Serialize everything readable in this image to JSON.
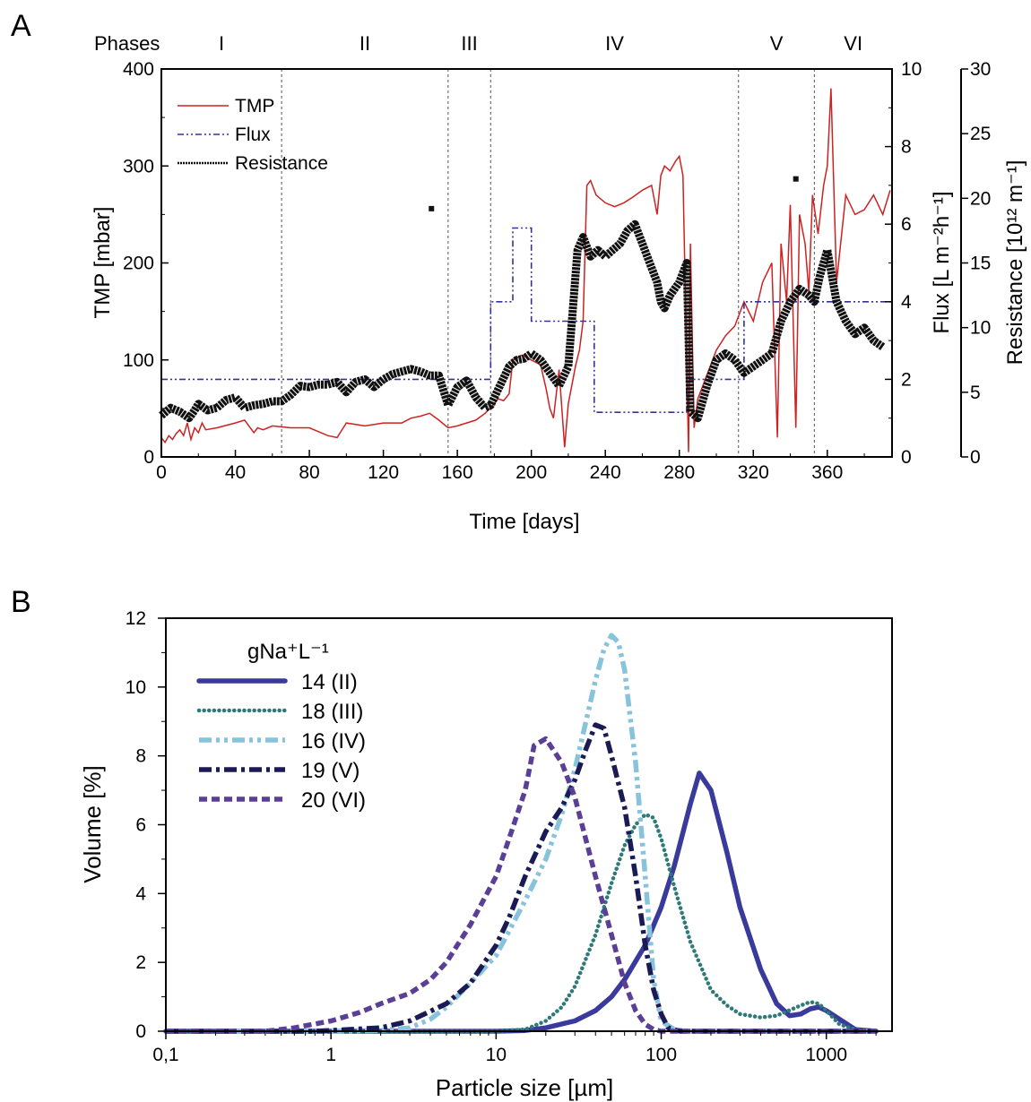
{
  "panels": {
    "a": "A",
    "b": "B"
  },
  "chart_data": [
    {
      "type": "line",
      "xlabel": "Time [days]",
      "ylabel": "TMP [mbar]",
      "y2label": "Flux [L m⁻²h⁻¹]",
      "y3label": "Resistance [10¹² m⁻¹]",
      "xlim": [
        0,
        395
      ],
      "ylim": [
        0,
        400
      ],
      "y2lim": [
        0,
        10
      ],
      "y3lim": [
        0,
        30
      ],
      "xticks": [
        "0",
        "40",
        "80",
        "120",
        "160",
        "200",
        "240",
        "280",
        "320",
        "360"
      ],
      "yticks": [
        "0",
        "100",
        "200",
        "300",
        "400"
      ],
      "y2ticks": [
        "0",
        "2",
        "4",
        "6",
        "8",
        "10"
      ],
      "y3ticks": [
        "0",
        "5",
        "10",
        "15",
        "20",
        "25",
        "30"
      ],
      "phases_label": "Phases",
      "phases": [
        {
          "label": "I",
          "start": 0,
          "end": 65
        },
        {
          "label": "II",
          "start": 65,
          "end": 155
        },
        {
          "label": "III",
          "start": 155,
          "end": 178
        },
        {
          "label": "IV",
          "start": 178,
          "end": 312
        },
        {
          "label": "V",
          "start": 312,
          "end": 353
        },
        {
          "label": "VI",
          "start": 353,
          "end": 395
        }
      ],
      "phase_boundaries": [
        65,
        155,
        178,
        312,
        353
      ],
      "legend": {
        "position": "top-left",
        "entries": [
          "TMP",
          "Flux",
          "Resistance"
        ]
      },
      "series": [
        {
          "name": "TMP",
          "axis": "left",
          "color": "#cc2222",
          "x": [
            0,
            2,
            4,
            6,
            8,
            10,
            12,
            14,
            16,
            18,
            20,
            22,
            24,
            30,
            40,
            45,
            50,
            52,
            55,
            60,
            70,
            80,
            90,
            95,
            100,
            110,
            120,
            130,
            135,
            140,
            145,
            150,
            155,
            160,
            165,
            170,
            175,
            180,
            182,
            185,
            188,
            190,
            195,
            200,
            205,
            208,
            210,
            212,
            215,
            218,
            220,
            222,
            224,
            226,
            228,
            230,
            232,
            235,
            240,
            245,
            250,
            255,
            260,
            265,
            268,
            270,
            272,
            275,
            278,
            280,
            282,
            285,
            286,
            288,
            290,
            295,
            300,
            305,
            310,
            315,
            320,
            325,
            330,
            333,
            335,
            338,
            340,
            343,
            345,
            348,
            350,
            352,
            355,
            358,
            360,
            362,
            365,
            370,
            375,
            380,
            385,
            390,
            394
          ],
          "y": [
            20,
            15,
            22,
            18,
            24,
            28,
            22,
            35,
            18,
            30,
            25,
            35,
            28,
            30,
            35,
            38,
            25,
            30,
            28,
            32,
            30,
            30,
            22,
            20,
            35,
            32,
            35,
            35,
            40,
            42,
            45,
            38,
            30,
            32,
            35,
            38,
            45,
            55,
            60,
            58,
            65,
            100,
            105,
            100,
            95,
            70,
            50,
            40,
            90,
            10,
            55,
            75,
            95,
            110,
            140,
            280,
            285,
            270,
            262,
            258,
            262,
            268,
            275,
            280,
            250,
            290,
            300,
            295,
            305,
            310,
            290,
            5,
            220,
            30,
            60,
            85,
            110,
            125,
            135,
            160,
            140,
            180,
            200,
            20,
            220,
            160,
            260,
            30,
            250,
            220,
            170,
            270,
            230,
            280,
            300,
            380,
            180,
            270,
            250,
            255,
            270,
            250,
            275
          ]
        },
        {
          "name": "Flux",
          "axis": "flux",
          "color": "#33339a",
          "x": [
            0,
            178,
            178,
            190,
            190,
            200,
            200,
            234,
            234,
            284,
            284,
            315,
            315,
            395
          ],
          "y": [
            2,
            2,
            4,
            4,
            5.9,
            5.9,
            3.5,
            3.5,
            1.15,
            1.15,
            2,
            2,
            4,
            4
          ]
        },
        {
          "name": "Resistance",
          "axis": "resistance",
          "color": "#111111",
          "x": [
            0,
            5,
            10,
            15,
            18,
            20,
            25,
            30,
            35,
            40,
            45,
            50,
            55,
            60,
            65,
            70,
            75,
            80,
            85,
            90,
            95,
            100,
            105,
            110,
            115,
            120,
            125,
            130,
            135,
            140,
            145,
            150,
            155,
            160,
            165,
            170,
            175,
            178,
            182,
            188,
            192,
            196,
            200,
            205,
            210,
            215,
            220,
            225,
            228,
            232,
            236,
            240,
            244,
            248,
            252,
            256,
            260,
            264,
            268,
            270,
            272,
            275,
            280,
            284,
            286,
            290,
            295,
            300,
            305,
            310,
            315,
            320,
            325,
            330,
            335,
            340,
            345,
            350,
            353,
            356,
            360,
            365,
            370,
            375,
            380,
            385,
            390
          ],
          "y": [
            3.2,
            3.8,
            3.5,
            3.0,
            3.6,
            4.1,
            3.6,
            3.8,
            4.4,
            4.6,
            3.8,
            4.0,
            4.1,
            4.3,
            4.3,
            4.8,
            5.5,
            5.4,
            5.6,
            5.6,
            5.8,
            5.0,
            5.8,
            6.0,
            5.4,
            6.0,
            6.4,
            6.6,
            6.8,
            6.6,
            6.3,
            6.3,
            4.0,
            5.4,
            5.9,
            4.6,
            3.8,
            4.0,
            5.2,
            7.0,
            7.5,
            7.6,
            8.0,
            7.5,
            6.5,
            5.5,
            7.0,
            16.0,
            17.0,
            15.5,
            16.0,
            15.5,
            16.0,
            16.5,
            17.5,
            18.0,
            16.5,
            15.0,
            13.5,
            12.0,
            11.5,
            12.5,
            13.5,
            15.0,
            3.5,
            3.0,
            5.5,
            7.5,
            8.0,
            7.5,
            6.5,
            7.0,
            7.5,
            8.0,
            10.5,
            12.0,
            13.0,
            12.5,
            12.0,
            14.0,
            16.0,
            12.0,
            10.5,
            9.5,
            10.0,
            9.0,
            8.5
          ]
        }
      ],
      "scatter_outliers": [
        {
          "x": 146,
          "y": 19.2
        },
        {
          "x": 343,
          "y": 21.5
        }
      ]
    },
    {
      "type": "line",
      "xlabel": "Particle size [µm]",
      "ylabel": "Volume [%]",
      "xscale": "log",
      "xlim": [
        0.1,
        2500
      ],
      "ylim": [
        0,
        12
      ],
      "xticks": [
        {
          "value": 0.1,
          "label": "0,1"
        },
        {
          "value": 1,
          "label": "1"
        },
        {
          "value": 10,
          "label": "10"
        },
        {
          "value": 100,
          "label": "100"
        },
        {
          "value": 1000,
          "label": "1000"
        }
      ],
      "yticks": [
        "0",
        "2",
        "4",
        "6",
        "8",
        "10",
        "12"
      ],
      "legend": {
        "position": "top-left",
        "title": "gNa⁺L⁻¹",
        "entries": [
          "14 (II)",
          "18 (III)",
          "16 (IV)",
          "19 (V)",
          "20 (VI)"
        ]
      },
      "series": [
        {
          "name": "14 (II)",
          "color": "#3a3a9c",
          "dash": "solid",
          "x": [
            0.1,
            10,
            15,
            20,
            30,
            40,
            50,
            60,
            80,
            100,
            120,
            150,
            170,
            200,
            250,
            300,
            400,
            500,
            600,
            700,
            800,
            900,
            1000,
            1200,
            1500,
            2000
          ],
          "y": [
            0,
            0,
            0.02,
            0.1,
            0.3,
            0.6,
            1,
            1.5,
            2.5,
            3.6,
            4.8,
            6.6,
            7.5,
            7.0,
            5.2,
            3.6,
            1.8,
            0.8,
            0.45,
            0.5,
            0.65,
            0.7,
            0.6,
            0.35,
            0.05,
            0
          ]
        },
        {
          "name": "18 (III)",
          "color": "#2e7a78",
          "dash": "dotted",
          "x": [
            0.1,
            10,
            15,
            20,
            25,
            30,
            40,
            50,
            60,
            70,
            80,
            90,
            100,
            120,
            150,
            200,
            250,
            300,
            400,
            500,
            700,
            800,
            900,
            1000,
            1200,
            1500,
            2000
          ],
          "y": [
            0,
            0,
            0.05,
            0.3,
            0.7,
            1.3,
            2.8,
            4.3,
            5.4,
            6.0,
            6.3,
            6.2,
            5.6,
            4.2,
            2.6,
            1.2,
            0.75,
            0.5,
            0.4,
            0.45,
            0.75,
            0.85,
            0.8,
            0.6,
            0.2,
            0.05,
            0
          ]
        },
        {
          "name": "16 (IV)",
          "color": "#88c3dc",
          "dash": "dashdotdot",
          "x": [
            0.1,
            1,
            2,
            3,
            4,
            5,
            7,
            10,
            15,
            20,
            25,
            30,
            35,
            40,
            45,
            50,
            55,
            60,
            70,
            80,
            90,
            100,
            120,
            150,
            200,
            2000
          ],
          "y": [
            0,
            0,
            0.02,
            0.1,
            0.35,
            0.7,
            1.4,
            2.2,
            3.8,
            5.0,
            6.3,
            7.6,
            9.0,
            10.2,
            11.1,
            11.5,
            11.3,
            10.5,
            7.8,
            4.5,
            1.5,
            0.3,
            0.05,
            0,
            0,
            0
          ]
        },
        {
          "name": "19 (V)",
          "color": "#1a1a55",
          "dash": "dashdot",
          "x": [
            0.1,
            0.8,
            1,
            2,
            3,
            5,
            7,
            10,
            12,
            15,
            20,
            25,
            30,
            35,
            40,
            45,
            50,
            60,
            70,
            80,
            90,
            100,
            110,
            130,
            2000
          ],
          "y": [
            0,
            0,
            0.02,
            0.1,
            0.3,
            0.8,
            1.4,
            2.5,
            3.3,
            4.5,
            5.8,
            6.5,
            7.3,
            8.2,
            8.9,
            8.8,
            8.0,
            6.5,
            4.5,
            2.5,
            1.2,
            0.5,
            0.1,
            0,
            0
          ]
        },
        {
          "name": "20 (VI)",
          "color": "#5b3e96",
          "dash": "dashed",
          "x": [
            0.1,
            0.4,
            0.6,
            1,
            1.5,
            2,
            3,
            4,
            5,
            7,
            10,
            12,
            15,
            17,
            20,
            25,
            30,
            40,
            50,
            60,
            70,
            80,
            90,
            100,
            2000
          ],
          "y": [
            0,
            0,
            0.1,
            0.3,
            0.55,
            0.8,
            1.1,
            1.5,
            2.0,
            3.1,
            4.5,
            5.6,
            7.0,
            8.3,
            8.5,
            7.8,
            6.8,
            4.5,
            2.8,
            1.4,
            0.6,
            0.2,
            0.05,
            0,
            0
          ]
        }
      ]
    }
  ]
}
